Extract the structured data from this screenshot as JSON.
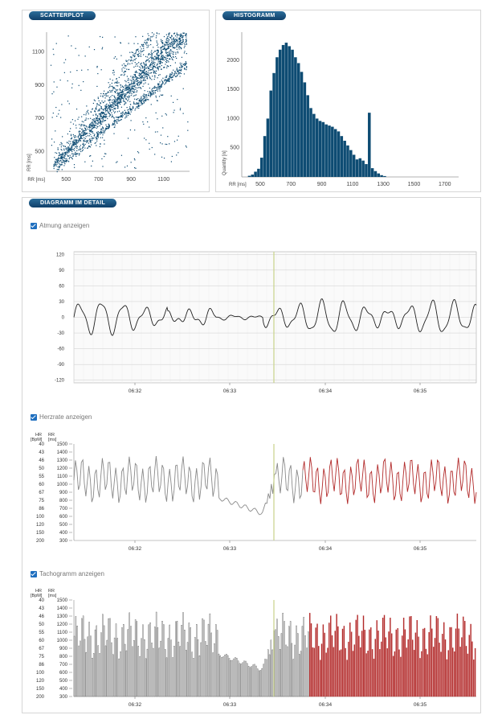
{
  "panels": {
    "scatter": {
      "title": "SCATTERPLOT"
    },
    "histogram": {
      "title": "HISTOGRAMM"
    },
    "detail": {
      "title": "DIAGRAMM IM DETAIL"
    }
  },
  "checkboxes": {
    "respiration": "Atmung anzeigen",
    "heartrate": "Herzrate anzeigen",
    "tachogram": "Tachogramm anzeigen"
  },
  "colors": {
    "accent": "#0e4c73",
    "hr_gray": "#8a8a8a",
    "hr_red": "#b22a2a",
    "cursor": "#c8d38a"
  },
  "chart_data": [
    {
      "type": "scatter",
      "xlabel": "RR [ms]",
      "ylabel": "RR [ms]",
      "xticks": [
        "500",
        "700",
        "900",
        "1100"
      ],
      "yticks": [
        "500",
        "700",
        "900",
        "1100"
      ],
      "xlim": [
        380,
        1260
      ],
      "ylim": [
        380,
        1220
      ],
      "bands": [
        {
          "name": "",
          "x": [
            400,
            1250
          ],
          "y_center_start": 420,
          "y_center_end": 1200
        }
      ]
    },
    {
      "type": "bar",
      "xlabel": "RR [ms]",
      "ylabel": "Quantity [n]",
      "xticks": [
        "500",
        "700",
        "900",
        "1100",
        "1300",
        "1500",
        "1700"
      ],
      "yticks": [
        "500",
        "1000",
        "1500",
        "2000"
      ],
      "xlim": [
        380,
        1790
      ],
      "ylim": [
        0,
        2480
      ],
      "x": [
        430,
        450,
        470,
        490,
        510,
        530,
        550,
        570,
        590,
        610,
        630,
        650,
        670,
        690,
        710,
        730,
        750,
        770,
        790,
        810,
        830,
        850,
        870,
        890,
        910,
        930,
        950,
        970,
        990,
        1010,
        1030,
        1050,
        1070,
        1090,
        1110,
        1130,
        1150,
        1170,
        1190,
        1210,
        1230,
        1250,
        1270,
        1290,
        1310
      ],
      "values": [
        20,
        40,
        90,
        140,
        330,
        700,
        1000,
        1480,
        1780,
        2050,
        2180,
        2260,
        2300,
        2240,
        2180,
        2050,
        1950,
        1800,
        1620,
        1400,
        1180,
        1080,
        1000,
        960,
        940,
        900,
        880,
        860,
        820,
        780,
        700,
        620,
        540,
        460,
        380,
        300,
        320,
        280,
        220,
        1100,
        150,
        100,
        60,
        30,
        15
      ]
    },
    {
      "type": "line",
      "title": "",
      "xticks": [
        "06:32",
        "06:33",
        "06:34",
        "06:35"
      ],
      "yticks": [
        "120",
        "90",
        "60",
        "30",
        "0",
        "-30",
        "-60",
        "-90",
        "-120"
      ],
      "ylim": [
        -125,
        125
      ],
      "series": [
        {
          "name": "",
          "description_only": "respiration signal oscillating between about -30 and 30"
        }
      ],
      "cursor_x": "06:33.45"
    },
    {
      "type": "line",
      "xticks": [
        "06:32",
        "06:33",
        "06:34",
        "06:35"
      ],
      "axis_headers": {
        "hr": "HR\n[BpM]",
        "rr": "RR\n[ms]"
      },
      "hr_ticks": [
        "40",
        "43",
        "46",
        "50",
        "55",
        "60",
        "67",
        "75",
        "86",
        "100",
        "120",
        "150",
        "200"
      ],
      "rr_ticks": [
        "1500",
        "1400",
        "1300",
        "1200",
        "1100",
        "1000",
        "900",
        "800",
        "700",
        "600",
        "500",
        "400",
        "300"
      ],
      "ylim": [
        300,
        1500
      ]
    },
    {
      "type": "bar",
      "xticks": [
        "06:32",
        "06:33",
        "06:34",
        "06:35"
      ],
      "axis_headers": {
        "hr": "HR\n[BpM]",
        "rr": "RR\n[ms]"
      },
      "hr_ticks": [
        "40",
        "43",
        "46",
        "50",
        "55",
        "60",
        "67",
        "75",
        "86",
        "100",
        "120",
        "150",
        "200"
      ],
      "rr_ticks": [
        "1500",
        "1400",
        "1300",
        "1200",
        "1100",
        "1000",
        "900",
        "800",
        "700",
        "600",
        "500",
        "400",
        "300"
      ],
      "ylim": [
        300,
        1500
      ]
    }
  ]
}
